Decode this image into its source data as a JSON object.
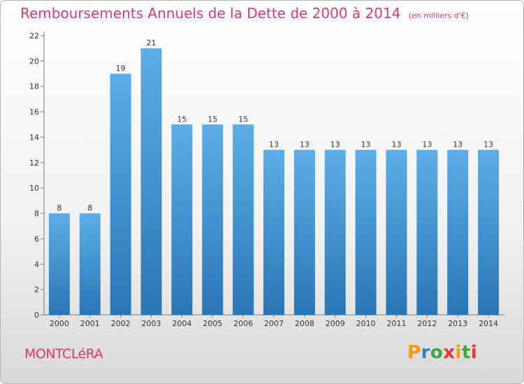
{
  "chart_data": {
    "type": "bar",
    "title": "Remboursements Annuels de la Dette de 2000 à 2014",
    "subtitle": "(en milliers d'€)",
    "xlabel": "",
    "ylabel": "",
    "ylim": [
      0,
      22
    ],
    "yticks": [
      0,
      2,
      4,
      6,
      8,
      10,
      12,
      14,
      16,
      18,
      20,
      22
    ],
    "grid": false,
    "categories": [
      "2000",
      "2001",
      "2002",
      "2003",
      "2004",
      "2005",
      "2006",
      "2007",
      "2008",
      "2009",
      "2010",
      "2011",
      "2012",
      "2013",
      "2014"
    ],
    "values": [
      8,
      8,
      19,
      21,
      15,
      15,
      15,
      13,
      13,
      13,
      13,
      13,
      13,
      13,
      13
    ],
    "data_labels": [
      "8",
      "8",
      "19",
      "21",
      "15",
      "15",
      "15",
      "13",
      "13",
      "13",
      "13",
      "13",
      "13",
      "13",
      "13"
    ]
  },
  "commune": "MONTCLéRA",
  "logo": {
    "letters": [
      "P",
      "r",
      "o",
      "x",
      "i",
      "t",
      "i"
    ],
    "colors": [
      "#f39c12",
      "#2e86c1",
      "#3daa35",
      "#e53935",
      "#f39c12",
      "#3daa35",
      "#e53935"
    ]
  },
  "colors": {
    "title": "#e0386a",
    "bar_top": "#5dade8",
    "bar_bottom": "#2a76b4",
    "axis": "#7a7a7a",
    "text": "#333333"
  }
}
